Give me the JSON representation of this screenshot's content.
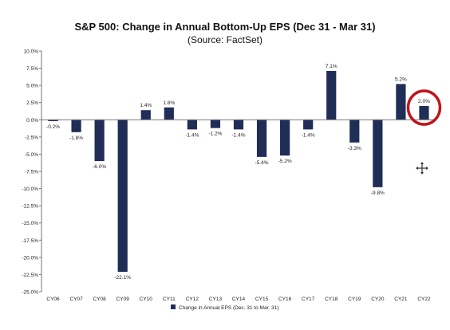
{
  "chart_data": {
    "type": "bar",
    "title": "S&P 500: Change in Annual Bottom-Up EPS (Dec 31 - Mar 31)",
    "subtitle": "(Source: FactSet)",
    "categories": [
      "CY06",
      "CY07",
      "CY08",
      "CY09",
      "CY10",
      "CY11",
      "CY12",
      "CY13",
      "CY14",
      "CY15",
      "CY16",
      "CY17",
      "CY18",
      "CY19",
      "CY20",
      "CY21",
      "CY22"
    ],
    "series": [
      {
        "name": "Change in Annual EPS (Dec. 31 to Mar. 31)",
        "values": [
          -0.2,
          -1.8,
          -6.0,
          -22.1,
          1.4,
          1.8,
          -1.4,
          -1.2,
          -1.4,
          -5.4,
          -5.2,
          -1.4,
          7.1,
          -3.3,
          -9.8,
          5.2,
          2.0
        ],
        "data_labels": [
          "-0.2%",
          "-1.8%",
          "-6.0%",
          "-22.1%",
          "1.4%",
          "1.8%",
          "-1.4%",
          "-1.2%",
          "-1.4%",
          "-5.4%",
          "-5.2%",
          "-1.4%",
          "7.1%",
          "-3.3%",
          "-9.8%",
          "5.2%",
          "2.0%"
        ],
        "color": "#1f2d57"
      }
    ],
    "ylim": [
      -25.0,
      10.0
    ],
    "ytick_values": [
      10.0,
      7.5,
      5.0,
      2.5,
      0.0,
      -2.5,
      -5.0,
      -7.5,
      -10.0,
      -12.5,
      -15.0,
      -17.5,
      -20.0,
      -22.5,
      -25.0
    ],
    "ytick_labels": [
      "10.0%",
      "7.5%",
      "5.0%",
      "2.5%",
      "0.0%",
      "-2.5%",
      "-5.0%",
      "-7.5%",
      "-10.0%",
      "-12.5%",
      "-15.0%",
      "-17.5%",
      "-20.0%",
      "-22.5%",
      "-25.0%"
    ],
    "grid": false,
    "legend_position": "bottom",
    "highlight": {
      "category": "CY22",
      "shape": "circle",
      "color": "#c0151b"
    }
  }
}
